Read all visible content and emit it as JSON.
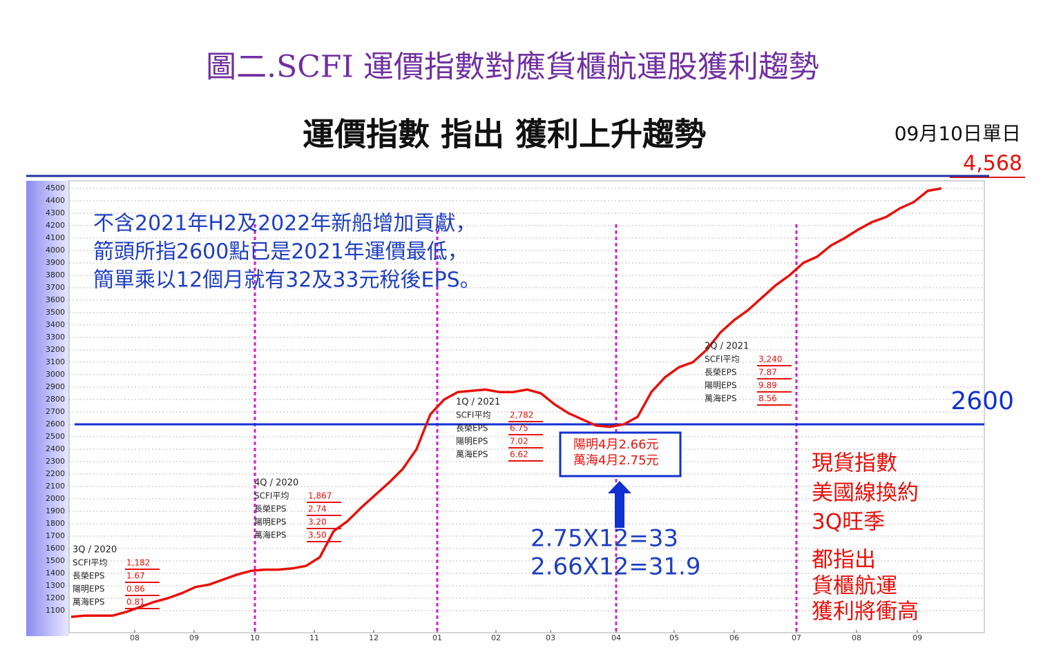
{
  "header": {
    "title": "圖二.SCFI 運價指數對應貨櫃航運股獲利趨勢",
    "subtitle": "運價指數 指出 獲利上升趨勢",
    "date_note": "09月10日單日",
    "latest": "4,568"
  },
  "chart_data": {
    "type": "line",
    "color": "#e8100a",
    "grid": true,
    "values": [
      1050,
      1060,
      1060,
      1060,
      1090,
      1130,
      1170,
      1200,
      1240,
      1290,
      1310,
      1350,
      1390,
      1420,
      1430,
      1430,
      1440,
      1460,
      1530,
      1740,
      1820,
      1930,
      2030,
      2130,
      2240,
      2400,
      2680,
      2800,
      2860,
      2870,
      2880,
      2860,
      2860,
      2880,
      2850,
      2760,
      2690,
      2640,
      2590,
      2580,
      2600,
      2660,
      2860,
      2980,
      3060,
      3100,
      3200,
      3340,
      3440,
      3520,
      3620,
      3720,
      3800,
      3900,
      3950,
      4040,
      4100,
      4170,
      4230,
      4270,
      4340,
      4390,
      4480,
      4500
    ],
    "ylim": [
      1000,
      4550
    ],
    "yticks": [
      1100,
      1200,
      1300,
      1400,
      1500,
      1600,
      1700,
      1800,
      1900,
      2000,
      2100,
      2200,
      2300,
      2400,
      2500,
      2600,
      2700,
      2800,
      2900,
      3000,
      3100,
      3200,
      3300,
      3400,
      3500,
      3600,
      3700,
      3800,
      3900,
      4000,
      4100,
      4200,
      4300,
      4400,
      4500
    ],
    "xlim": [
      0,
      66.1
    ],
    "xticks": [
      {
        "value": 4.6,
        "label": "08"
      },
      {
        "value": 8.9,
        "label": "09"
      },
      {
        "value": 13.3,
        "label": "10"
      },
      {
        "value": 17.6,
        "label": "11"
      },
      {
        "value": 21.9,
        "label": "12"
      },
      {
        "value": 26.5,
        "label": "01"
      },
      {
        "value": 30.75,
        "label": "02"
      },
      {
        "value": 34.7,
        "label": "03"
      },
      {
        "value": 39.45,
        "label": "04"
      },
      {
        "value": 43.65,
        "label": "05"
      },
      {
        "value": 48,
        "label": "06"
      },
      {
        "value": 52.5,
        "label": "07"
      },
      {
        "value": 56.85,
        "label": "08"
      },
      {
        "value": 61.25,
        "label": "09"
      }
    ],
    "reference_line": {
      "value": 2600,
      "label": "2600",
      "color": "#1030d0"
    },
    "note_lines": [
      "不含2021年H2及2022年新船增加貢獻，",
      "箭頭所指2600點已是2021年運價最低，",
      "簡單乘以12個月就有32及33元稅後EPS。"
    ],
    "quarters": [
      {
        "title": "3Q / 2020",
        "rows": [
          [
            "SCFI平均",
            "1,182"
          ],
          [
            "長榮EPS",
            "1.67"
          ],
          [
            "陽明EPS",
            "0.86"
          ],
          [
            "萬海EPS",
            "0.81"
          ]
        ]
      },
      {
        "title": "4Q / 2020",
        "rows": [
          [
            "SCFI平均",
            "1,867"
          ],
          [
            "長榮EPS",
            "2.74"
          ],
          [
            "陽明EPS",
            "3.20"
          ],
          [
            "萬海EPS",
            "3.50"
          ]
        ]
      },
      {
        "title": "1Q / 2021",
        "rows": [
          [
            "SCFI平均",
            "2,782"
          ],
          [
            "長榮EPS",
            "6.75"
          ],
          [
            "陽明EPS",
            "7.02"
          ],
          [
            "萬海EPS",
            "6.62"
          ]
        ]
      },
      {
        "title": "2Q / 2021",
        "rows": [
          [
            "SCFI平均",
            "3,240"
          ],
          [
            "長榮EPS",
            "7.87"
          ],
          [
            "陽明EPS",
            "9.89"
          ],
          [
            "萬海EPS",
            "8.56"
          ]
        ]
      }
    ],
    "box_lines": [
      "陽明4月2.66元",
      "萬海4月2.75元"
    ],
    "equations": [
      "2.75X12=33",
      "2.66X12=31.9"
    ],
    "side_notes": [
      "現貨指數",
      "美國線換約",
      "3Q旺季",
      "都指出",
      "貨櫃航運",
      "獲利將衝高"
    ]
  }
}
